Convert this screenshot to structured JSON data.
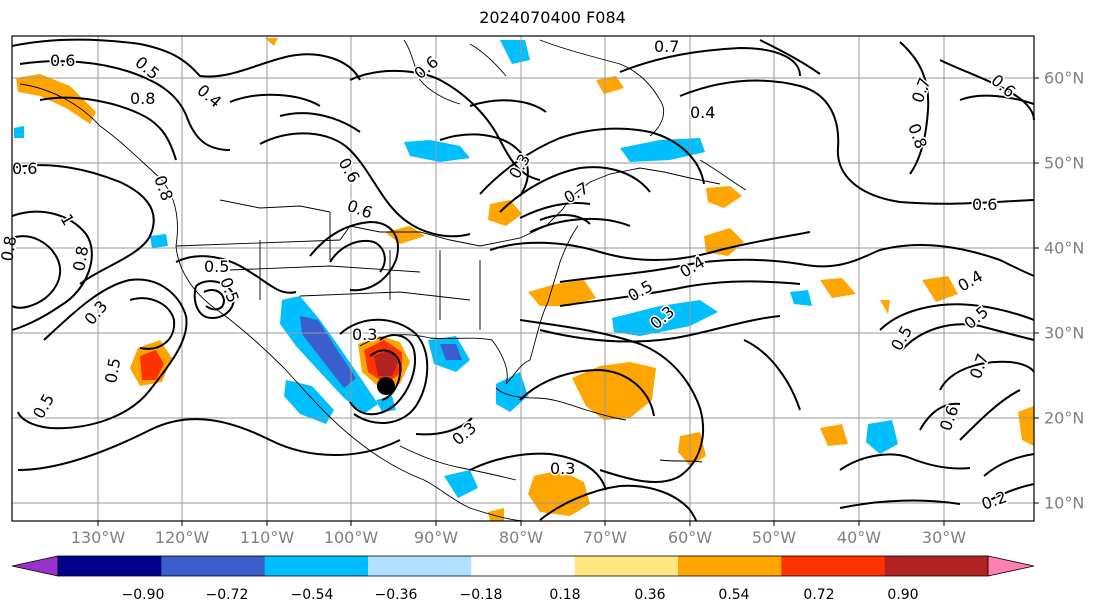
{
  "title": "2024070400 F084",
  "map": {
    "lon_labels": [
      "130°W",
      "120°W",
      "110°W",
      "100°W",
      "90°W",
      "80°W",
      "70°W",
      "60°W",
      "50°W",
      "40°W",
      "30°W"
    ],
    "lat_labels": [
      "60°N",
      "50°N",
      "40°N",
      "30°N",
      "20°N",
      "10°N"
    ],
    "contour_labels": [
      "0.6",
      "0.5",
      "0.8",
      "0.4",
      "0.6",
      "0.3",
      "0.7",
      "0.6",
      "0.4",
      "0.6",
      "0.7",
      "0.8",
      "0.6",
      "0.6",
      "0.7",
      "0.5",
      "0.8",
      "0.3",
      "0.5",
      "0.5",
      "0.4",
      "0.5",
      "0.3",
      "0.3",
      "0.3",
      "0.2",
      "0.6",
      "0.7",
      "0.5",
      "0.4",
      "0.5",
      "0.6",
      "1",
      "0.8",
      "0.8",
      "0.3",
      "0.5"
    ]
  },
  "colorbar": {
    "ticks": [
      "−0.90",
      "−0.72",
      "−0.54",
      "−0.36",
      "−0.18",
      "0.18",
      "0.36",
      "0.54",
      "0.72",
      "0.90"
    ],
    "colors": [
      "#9932cc",
      "#00008b",
      "#3a5fcd",
      "#00bfff",
      "#b0e2ff",
      "#ffffff",
      "#ffe680",
      "#ffa500",
      "#ff3300",
      "#b22222",
      "#ff80b0"
    ]
  }
}
